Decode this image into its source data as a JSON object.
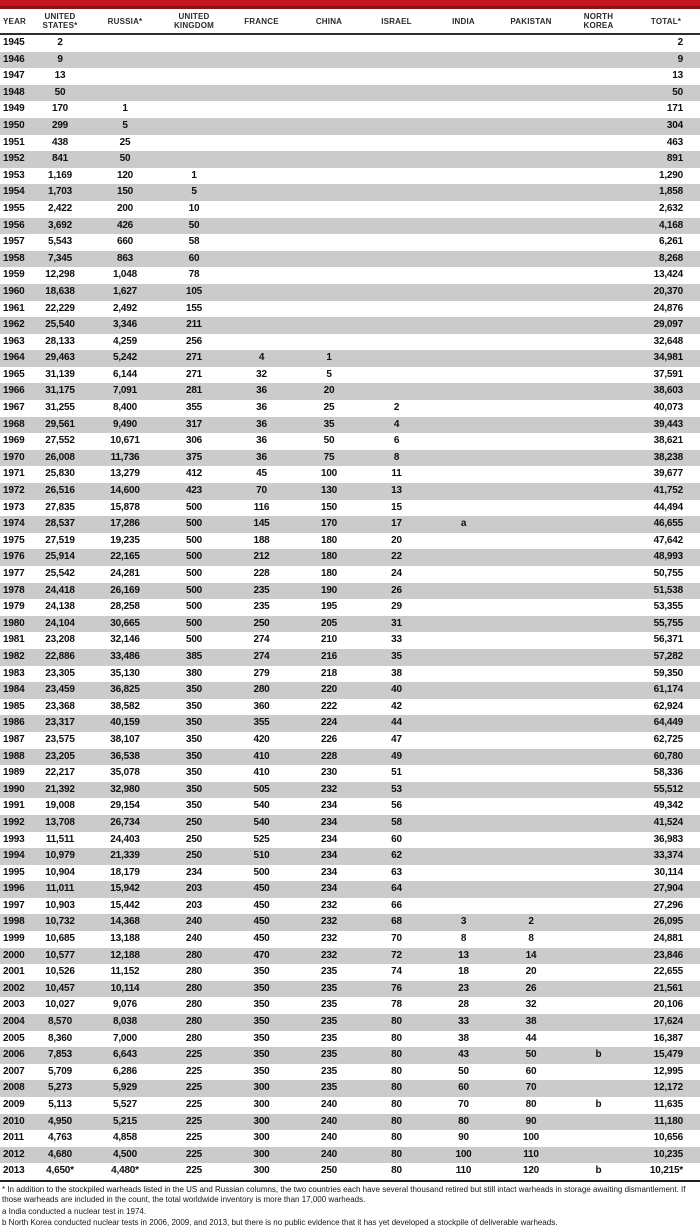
{
  "colors": {
    "accent_red": "#c11722",
    "accent_red_dark": "#8e1115",
    "row_stripe_gray": "#cbcbcb",
    "text": "#0f0f0f"
  },
  "table": {
    "columns": [
      {
        "id": "year",
        "label": "YEAR"
      },
      {
        "id": "united-states",
        "label": "UNITED\nSTATES*"
      },
      {
        "id": "russia",
        "label": "RUSSIA*"
      },
      {
        "id": "united-kingdom",
        "label": "UNITED\nKINGDOM"
      },
      {
        "id": "france",
        "label": "FRANCE"
      },
      {
        "id": "china",
        "label": "CHINA"
      },
      {
        "id": "israel",
        "label": "ISRAEL"
      },
      {
        "id": "india",
        "label": "INDIA"
      },
      {
        "id": "pakistan",
        "label": "PAKISTAN"
      },
      {
        "id": "north-korea",
        "label": "NORTH\nKOREA"
      },
      {
        "id": "total",
        "label": "TOTAL*"
      }
    ],
    "rows": [
      [
        "1945",
        "2",
        "",
        "",
        "",
        "",
        "",
        "",
        "",
        "",
        "2"
      ],
      [
        "1946",
        "9",
        "",
        "",
        "",
        "",
        "",
        "",
        "",
        "",
        "9"
      ],
      [
        "1947",
        "13",
        "",
        "",
        "",
        "",
        "",
        "",
        "",
        "",
        "13"
      ],
      [
        "1948",
        "50",
        "",
        "",
        "",
        "",
        "",
        "",
        "",
        "",
        "50"
      ],
      [
        "1949",
        "170",
        "1",
        "",
        "",
        "",
        "",
        "",
        "",
        "",
        "171"
      ],
      [
        "1950",
        "299",
        "5",
        "",
        "",
        "",
        "",
        "",
        "",
        "",
        "304"
      ],
      [
        "1951",
        "438",
        "25",
        "",
        "",
        "",
        "",
        "",
        "",
        "",
        "463"
      ],
      [
        "1952",
        "841",
        "50",
        "",
        "",
        "",
        "",
        "",
        "",
        "",
        "891"
      ],
      [
        "1953",
        "1,169",
        "120",
        "1",
        "",
        "",
        "",
        "",
        "",
        "",
        "1,290"
      ],
      [
        "1954",
        "1,703",
        "150",
        "5",
        "",
        "",
        "",
        "",
        "",
        "",
        "1,858"
      ],
      [
        "1955",
        "2,422",
        "200",
        "10",
        "",
        "",
        "",
        "",
        "",
        "",
        "2,632"
      ],
      [
        "1956",
        "3,692",
        "426",
        "50",
        "",
        "",
        "",
        "",
        "",
        "",
        "4,168"
      ],
      [
        "1957",
        "5,543",
        "660",
        "58",
        "",
        "",
        "",
        "",
        "",
        "",
        "6,261"
      ],
      [
        "1958",
        "7,345",
        "863",
        "60",
        "",
        "",
        "",
        "",
        "",
        "",
        "8,268"
      ],
      [
        "1959",
        "12,298",
        "1,048",
        "78",
        "",
        "",
        "",
        "",
        "",
        "",
        "13,424"
      ],
      [
        "1960",
        "18,638",
        "1,627",
        "105",
        "",
        "",
        "",
        "",
        "",
        "",
        "20,370"
      ],
      [
        "1961",
        "22,229",
        "2,492",
        "155",
        "",
        "",
        "",
        "",
        "",
        "",
        "24,876"
      ],
      [
        "1962",
        "25,540",
        "3,346",
        "211",
        "",
        "",
        "",
        "",
        "",
        "",
        "29,097"
      ],
      [
        "1963",
        "28,133",
        "4,259",
        "256",
        "",
        "",
        "",
        "",
        "",
        "",
        "32,648"
      ],
      [
        "1964",
        "29,463",
        "5,242",
        "271",
        "4",
        "1",
        "",
        "",
        "",
        "",
        "34,981"
      ],
      [
        "1965",
        "31,139",
        "6,144",
        "271",
        "32",
        "5",
        "",
        "",
        "",
        "",
        "37,591"
      ],
      [
        "1966",
        "31,175",
        "7,091",
        "281",
        "36",
        "20",
        "",
        "",
        "",
        "",
        "38,603"
      ],
      [
        "1967",
        "31,255",
        "8,400",
        "355",
        "36",
        "25",
        "2",
        "",
        "",
        "",
        "40,073"
      ],
      [
        "1968",
        "29,561",
        "9,490",
        "317",
        "36",
        "35",
        "4",
        "",
        "",
        "",
        "39,443"
      ],
      [
        "1969",
        "27,552",
        "10,671",
        "306",
        "36",
        "50",
        "6",
        "",
        "",
        "",
        "38,621"
      ],
      [
        "1970",
        "26,008",
        "11,736",
        "375",
        "36",
        "75",
        "8",
        "",
        "",
        "",
        "38,238"
      ],
      [
        "1971",
        "25,830",
        "13,279",
        "412",
        "45",
        "100",
        "11",
        "",
        "",
        "",
        "39,677"
      ],
      [
        "1972",
        "26,516",
        "14,600",
        "423",
        "70",
        "130",
        "13",
        "",
        "",
        "",
        "41,752"
      ],
      [
        "1973",
        "27,835",
        "15,878",
        "500",
        "116",
        "150",
        "15",
        "",
        "",
        "",
        "44,494"
      ],
      [
        "1974",
        "28,537",
        "17,286",
        "500",
        "145",
        "170",
        "17",
        "a",
        "",
        "",
        "46,655"
      ],
      [
        "1975",
        "27,519",
        "19,235",
        "500",
        "188",
        "180",
        "20",
        "",
        "",
        "",
        "47,642"
      ],
      [
        "1976",
        "25,914",
        "22,165",
        "500",
        "212",
        "180",
        "22",
        "",
        "",
        "",
        "48,993"
      ],
      [
        "1977",
        "25,542",
        "24,281",
        "500",
        "228",
        "180",
        "24",
        "",
        "",
        "",
        "50,755"
      ],
      [
        "1978",
        "24,418",
        "26,169",
        "500",
        "235",
        "190",
        "26",
        "",
        "",
        "",
        "51,538"
      ],
      [
        "1979",
        "24,138",
        "28,258",
        "500",
        "235",
        "195",
        "29",
        "",
        "",
        "",
        "53,355"
      ],
      [
        "1980",
        "24,104",
        "30,665",
        "500",
        "250",
        "205",
        "31",
        "",
        "",
        "",
        "55,755"
      ],
      [
        "1981",
        "23,208",
        "32,146",
        "500",
        "274",
        "210",
        "33",
        "",
        "",
        "",
        "56,371"
      ],
      [
        "1982",
        "22,886",
        "33,486",
        "385",
        "274",
        "216",
        "35",
        "",
        "",
        "",
        "57,282"
      ],
      [
        "1983",
        "23,305",
        "35,130",
        "380",
        "279",
        "218",
        "38",
        "",
        "",
        "",
        "59,350"
      ],
      [
        "1984",
        "23,459",
        "36,825",
        "350",
        "280",
        "220",
        "40",
        "",
        "",
        "",
        "61,174"
      ],
      [
        "1985",
        "23,368",
        "38,582",
        "350",
        "360",
        "222",
        "42",
        "",
        "",
        "",
        "62,924"
      ],
      [
        "1986",
        "23,317",
        "40,159",
        "350",
        "355",
        "224",
        "44",
        "",
        "",
        "",
        "64,449"
      ],
      [
        "1987",
        "23,575",
        "38,107",
        "350",
        "420",
        "226",
        "47",
        "",
        "",
        "",
        "62,725"
      ],
      [
        "1988",
        "23,205",
        "36,538",
        "350",
        "410",
        "228",
        "49",
        "",
        "",
        "",
        "60,780"
      ],
      [
        "1989",
        "22,217",
        "35,078",
        "350",
        "410",
        "230",
        "51",
        "",
        "",
        "",
        "58,336"
      ],
      [
        "1990",
        "21,392",
        "32,980",
        "350",
        "505",
        "232",
        "53",
        "",
        "",
        "",
        "55,512"
      ],
      [
        "1991",
        "19,008",
        "29,154",
        "350",
        "540",
        "234",
        "56",
        "",
        "",
        "",
        "49,342"
      ],
      [
        "1992",
        "13,708",
        "26,734",
        "250",
        "540",
        "234",
        "58",
        "",
        "",
        "",
        "41,524"
      ],
      [
        "1993",
        "11,511",
        "24,403",
        "250",
        "525",
        "234",
        "60",
        "",
        "",
        "",
        "36,983"
      ],
      [
        "1994",
        "10,979",
        "21,339",
        "250",
        "510",
        "234",
        "62",
        "",
        "",
        "",
        "33,374"
      ],
      [
        "1995",
        "10,904",
        "18,179",
        "234",
        "500",
        "234",
        "63",
        "",
        "",
        "",
        "30,114"
      ],
      [
        "1996",
        "11,011",
        "15,942",
        "203",
        "450",
        "234",
        "64",
        "",
        "",
        "",
        "27,904"
      ],
      [
        "1997",
        "10,903",
        "15,442",
        "203",
        "450",
        "232",
        "66",
        "",
        "",
        "",
        "27,296"
      ],
      [
        "1998",
        "10,732",
        "14,368",
        "240",
        "450",
        "232",
        "68",
        "3",
        "2",
        "",
        "26,095"
      ],
      [
        "1999",
        "10,685",
        "13,188",
        "240",
        "450",
        "232",
        "70",
        "8",
        "8",
        "",
        "24,881"
      ],
      [
        "2000",
        "10,577",
        "12,188",
        "280",
        "470",
        "232",
        "72",
        "13",
        "14",
        "",
        "23,846"
      ],
      [
        "2001",
        "10,526",
        "11,152",
        "280",
        "350",
        "235",
        "74",
        "18",
        "20",
        "",
        "22,655"
      ],
      [
        "2002",
        "10,457",
        "10,114",
        "280",
        "350",
        "235",
        "76",
        "23",
        "26",
        "",
        "21,561"
      ],
      [
        "2003",
        "10,027",
        "9,076",
        "280",
        "350",
        "235",
        "78",
        "28",
        "32",
        "",
        "20,106"
      ],
      [
        "2004",
        "8,570",
        "8,038",
        "280",
        "350",
        "235",
        "80",
        "33",
        "38",
        "",
        "17,624"
      ],
      [
        "2005",
        "8,360",
        "7,000",
        "280",
        "350",
        "235",
        "80",
        "38",
        "44",
        "",
        "16,387"
      ],
      [
        "2006",
        "7,853",
        "6,643",
        "225",
        "350",
        "235",
        "80",
        "43",
        "50",
        "b",
        "15,479"
      ],
      [
        "2007",
        "5,709",
        "6,286",
        "225",
        "350",
        "235",
        "80",
        "50",
        "60",
        "",
        "12,995"
      ],
      [
        "2008",
        "5,273",
        "5,929",
        "225",
        "300",
        "235",
        "80",
        "60",
        "70",
        "",
        "12,172"
      ],
      [
        "2009",
        "5,113",
        "5,527",
        "225",
        "300",
        "240",
        "80",
        "70",
        "80",
        "b",
        "11,635"
      ],
      [
        "2010",
        "4,950",
        "5,215",
        "225",
        "300",
        "240",
        "80",
        "80",
        "90",
        "",
        "11,180"
      ],
      [
        "2011",
        "4,763",
        "4,858",
        "225",
        "300",
        "240",
        "80",
        "90",
        "100",
        "",
        "10,656"
      ],
      [
        "2012",
        "4,680",
        "4,500",
        "225",
        "300",
        "240",
        "80",
        "100",
        "110",
        "",
        "10,235"
      ],
      [
        "2013",
        "4,650*",
        "4,480*",
        "225",
        "300",
        "250",
        "80",
        "110",
        "120",
        "b",
        "10,215*"
      ]
    ]
  },
  "footnotes": [
    "* In addition to the stockpiled warheads listed in the US and Russian columns, the two countries each have several thousand retired but still intact warheads in storage awaiting dismantlement. If those warheads are included in the count, the total worldwide inventory is more than 17,000 warheads.",
    "a India conducted a nuclear test in 1974.",
    "b North Korea conducted nuclear tests in 2006, 2009, and 2013, but there is no public evidence that it has yet developed a stockpile of deliverable warheads."
  ]
}
